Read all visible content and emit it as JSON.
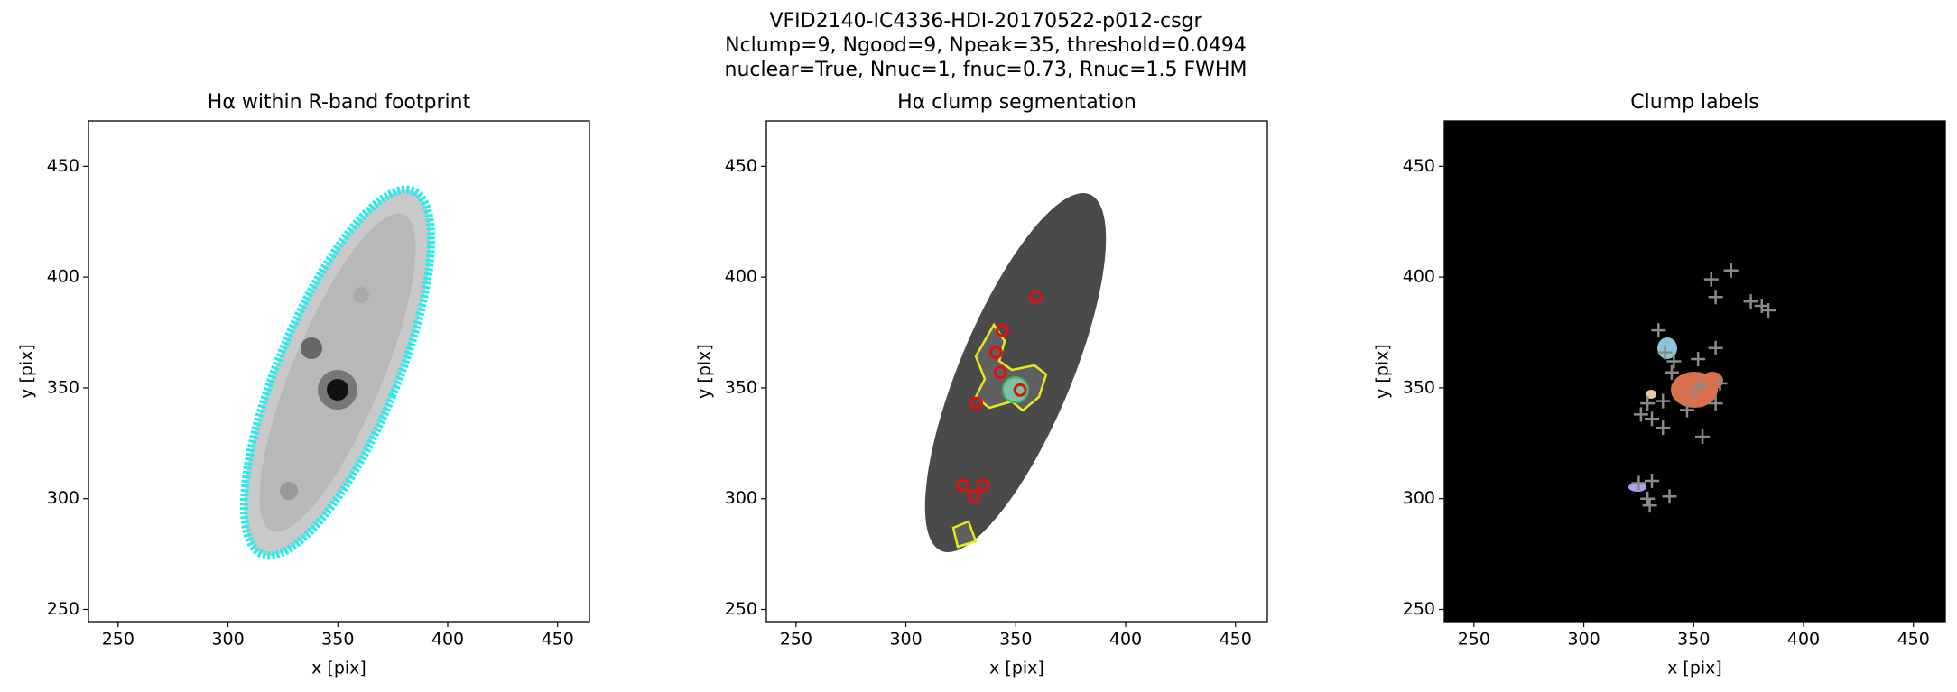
{
  "suptitle": [
    "VFID2140-IC4336-HDI-20170522-p012-csgr",
    "Nclump=9, Ngood=9, Npeak=35, threshold=0.0494",
    "nuclear=True, Nnuc=1, fnuc=0.73, Rnuc=1.5 FWHM"
  ],
  "chart_data": [
    {
      "type": "image",
      "title": "Hα within R-band footprint",
      "x_label": "x [pix]",
      "y_label": "y [pix]",
      "xlim": [
        236.5,
        464.5
      ],
      "ylim": [
        244.5,
        470.5
      ],
      "xticks": [
        250,
        300,
        350,
        400,
        450
      ],
      "yticks": [
        250,
        300,
        350,
        400,
        450
      ]
    },
    {
      "type": "image",
      "title": "Hα clump segmentation",
      "x_label": "x [pix]",
      "y_label": "y [pix]",
      "xlim": [
        236.5,
        464.5
      ],
      "ylim": [
        244.5,
        470.5
      ],
      "xticks": [
        250,
        300,
        350,
        400,
        450
      ],
      "yticks": [
        250,
        300,
        350,
        400,
        450
      ],
      "markers": {
        "style": "circle",
        "color": "#e01010",
        "x": [
          352,
          341,
          344,
          359,
          343,
          332,
          326,
          331,
          335
        ],
        "y": [
          349,
          366,
          376,
          391,
          357,
          343,
          306,
          301,
          306
        ]
      }
    },
    {
      "type": "image",
      "title": "Clump labels",
      "x_label": "x [pix]",
      "y_label": "y [pix]",
      "xlim": [
        236.5,
        464.5
      ],
      "ylim": [
        244.5,
        470.5
      ],
      "xticks": [
        250,
        300,
        350,
        400,
        450
      ],
      "yticks": [
        250,
        300,
        350,
        400,
        450
      ],
      "markers": {
        "style": "cross",
        "color": "#8a8a8a",
        "x": [
          350,
          337,
          358,
          367,
          376,
          381,
          384,
          360,
          341,
          360,
          352,
          340,
          353,
          362,
          360,
          347,
          336,
          329,
          326,
          331,
          336,
          354,
          331,
          325,
          329,
          330,
          339,
          334
        ],
        "y": [
          348,
          366,
          399,
          403,
          389,
          387,
          385,
          391,
          362,
          368,
          363,
          357,
          351,
          352,
          343,
          340,
          344,
          343,
          338,
          336,
          332,
          328,
          308,
          307,
          300,
          297,
          301,
          376
        ]
      }
    }
  ]
}
